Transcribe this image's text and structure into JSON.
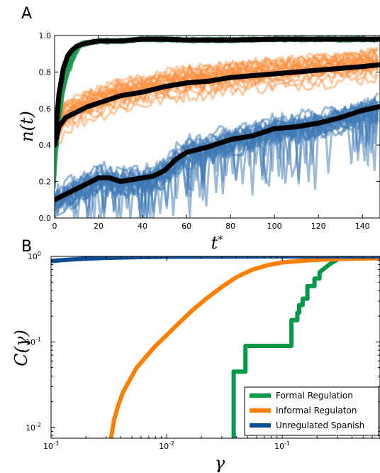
{
  "chart_data": [
    {
      "panel": "A",
      "type": "line",
      "xlabel": "t*",
      "ylabel": "n(t)",
      "xlim": [
        0,
        148
      ],
      "ylim": [
        0,
        1
      ],
      "xticks": [
        "0",
        "20",
        "40",
        "60",
        "80",
        "100",
        "120",
        "140"
      ],
      "yticks": [
        "0.0",
        "0.2",
        "0.4",
        "0.6",
        "0.8",
        "1.0"
      ],
      "ensemble_colors": {
        "formal": "#1a9850",
        "informal": "#fd8d3c",
        "unregulated": "#3c78b4"
      },
      "series": [
        {
          "x": [
            0,
            2,
            4,
            6,
            8,
            10,
            12,
            15,
            20,
            30,
            40,
            50,
            60,
            80,
            100,
            120,
            148
          ],
          "values": [
            0.4,
            0.68,
            0.82,
            0.89,
            0.92,
            0.94,
            0.95,
            0.96,
            0.97,
            0.97,
            0.98,
            0.98,
            0.975,
            0.975,
            0.98,
            0.98,
            0.98
          ]
        },
        {
          "x": [
            0,
            2,
            5,
            10,
            15,
            20,
            25,
            30,
            40,
            50,
            60,
            70,
            80,
            90,
            100,
            110,
            120,
            130,
            140,
            148
          ],
          "values": [
            0.4,
            0.5,
            0.55,
            0.58,
            0.61,
            0.63,
            0.65,
            0.67,
            0.69,
            0.72,
            0.74,
            0.75,
            0.77,
            0.78,
            0.79,
            0.8,
            0.81,
            0.82,
            0.83,
            0.84
          ]
        },
        {
          "x": [
            0,
            5,
            10,
            15,
            20,
            25,
            30,
            35,
            40,
            45,
            50,
            55,
            60,
            70,
            80,
            90,
            100,
            110,
            120,
            130,
            140,
            148
          ],
          "values": [
            0.1,
            0.13,
            0.16,
            0.19,
            0.22,
            0.22,
            0.2,
            0.21,
            0.22,
            0.23,
            0.26,
            0.32,
            0.36,
            0.39,
            0.43,
            0.45,
            0.49,
            0.5,
            0.52,
            0.55,
            0.59,
            0.61
          ]
        }
      ]
    },
    {
      "panel": "B",
      "type": "line",
      "xlabel": "γ",
      "ylabel": "C(γ)",
      "xscale": "log",
      "yscale": "log",
      "xlim": [
        0.001,
        0.7
      ],
      "ylim": [
        0.0075,
        1
      ],
      "xticks": [
        {
          "value": 0.001,
          "base": "10",
          "exp": "-3"
        },
        {
          "value": 0.01,
          "base": "10",
          "exp": "-2"
        },
        {
          "value": 0.1,
          "base": "10",
          "exp": "-1"
        }
      ],
      "yticks": [
        {
          "value": 0.01,
          "base": "10",
          "exp": "-2"
        },
        {
          "value": 0.1,
          "base": "10",
          "exp": "-1"
        },
        {
          "value": 1,
          "base": "10",
          "exp": "0"
        }
      ],
      "legend": {
        "position": "bottom-right"
      },
      "series": [
        {
          "name": "Formal Regulation",
          "color": "#009947",
          "x": [
            0.038,
            0.038,
            0.043,
            0.043,
            0.048,
            0.048,
            0.12,
            0.12,
            0.135,
            0.135,
            0.14,
            0.14,
            0.145,
            0.145,
            0.15,
            0.15,
            0.165,
            0.165,
            0.19,
            0.19,
            0.21,
            0.21,
            0.23,
            0.26,
            0.3
          ],
          "values": [
            0.0075,
            0.045,
            0.045,
            0.045,
            0.045,
            0.09,
            0.09,
            0.18,
            0.18,
            0.22,
            0.22,
            0.27,
            0.27,
            0.27,
            0.27,
            0.32,
            0.32,
            0.45,
            0.45,
            0.55,
            0.55,
            0.65,
            0.72,
            0.82,
            0.92
          ]
        },
        {
          "name": "Informal Regulaton",
          "color": "#ff7f00",
          "x": [
            0.0033,
            0.0035,
            0.0038,
            0.0042,
            0.0048,
            0.0055,
            0.0065,
            0.008,
            0.01,
            0.013,
            0.017,
            0.022,
            0.03,
            0.04,
            0.055,
            0.075,
            0.1,
            0.15,
            0.2,
            0.3,
            0.5,
            0.7
          ],
          "values": [
            0.0075,
            0.012,
            0.018,
            0.026,
            0.036,
            0.05,
            0.065,
            0.09,
            0.12,
            0.17,
            0.24,
            0.32,
            0.44,
            0.57,
            0.7,
            0.79,
            0.85,
            0.89,
            0.91,
            0.93,
            0.945,
            0.95
          ]
        },
        {
          "name": "Unregulated Spanish",
          "color": "#0a4b91",
          "x": [
            0.001,
            0.0012,
            0.0015,
            0.002,
            0.003,
            0.005,
            0.008,
            0.01,
            0.05,
            0.1,
            0.7
          ],
          "values": [
            0.88,
            0.9,
            0.92,
            0.94,
            0.96,
            0.975,
            0.985,
            0.99,
            0.995,
            0.998,
            1.0
          ]
        }
      ]
    }
  ]
}
